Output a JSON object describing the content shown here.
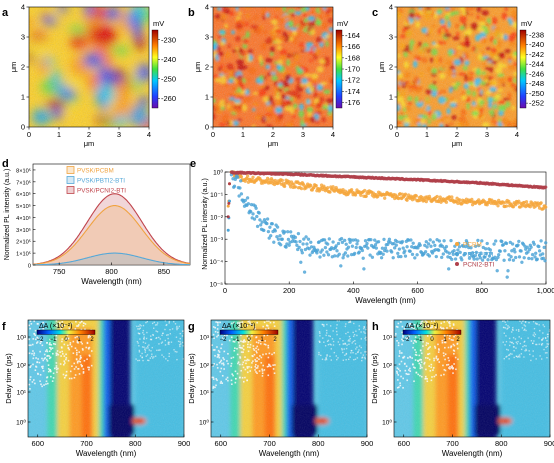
{
  "figure": {
    "panel_letters": [
      "a",
      "b",
      "c",
      "d",
      "e",
      "f",
      "g",
      "h"
    ]
  },
  "chart_data": [
    {
      "panel": "a",
      "type": "heatmap",
      "xlabel": "μm",
      "ylabel": "μm",
      "xlim": [
        0,
        4
      ],
      "ylim": [
        0,
        4
      ],
      "x_ticks": [
        "0",
        "1",
        "2",
        "3",
        "4"
      ],
      "y_ticks": [
        "0",
        "1",
        "2",
        "3",
        "4"
      ],
      "colorbar": {
        "unit": "mV",
        "ticks": [
          "-230",
          "-240",
          "-250",
          "-260"
        ],
        "range": [
          -265,
          -225
        ]
      }
    },
    {
      "panel": "b",
      "type": "heatmap",
      "xlabel": "μm",
      "ylabel": "μm",
      "xlim": [
        0,
        4
      ],
      "ylim": [
        0,
        4
      ],
      "x_ticks": [
        "0",
        "1",
        "2",
        "3",
        "4"
      ],
      "y_ticks": [
        "0",
        "1",
        "2",
        "3",
        "4"
      ],
      "colorbar": {
        "unit": "mV",
        "ticks": [
          "-164",
          "-166",
          "-168",
          "-170",
          "-172",
          "-174",
          "-176"
        ],
        "range": [
          -177,
          -163
        ]
      }
    },
    {
      "panel": "c",
      "type": "heatmap",
      "xlabel": "μm",
      "ylabel": "μm",
      "xlim": [
        0,
        4
      ],
      "ylim": [
        0,
        4
      ],
      "x_ticks": [
        "0",
        "1",
        "2",
        "3",
        "4"
      ],
      "y_ticks": [
        "0",
        "1",
        "2",
        "3",
        "4"
      ],
      "colorbar": {
        "unit": "mV",
        "ticks": [
          "-238",
          "-240",
          "-242",
          "-244",
          "-246",
          "-248",
          "-250",
          "-252"
        ],
        "range": [
          -253,
          -237
        ]
      }
    },
    {
      "panel": "d",
      "type": "area",
      "xlabel": "Wavelength (nm)",
      "ylabel": "Normalized PL intensity (a.u.)",
      "xlim": [
        725,
        875
      ],
      "ylim": [
        0,
        850000.0
      ],
      "x_ticks": [
        "750",
        "800",
        "850"
      ],
      "y_ticks": [
        "0",
        "1×10⁵",
        "2×10⁵",
        "3×10⁵",
        "4×10⁵",
        "5×10⁵",
        "6×10⁵",
        "7×10⁵",
        "8×10⁵"
      ],
      "legend_position": "top-left",
      "series": [
        {
          "name": "PVSK/PCBM",
          "color": "#f0a340",
          "peak": 500000.0,
          "center": 803,
          "width": 26
        },
        {
          "name": "PVSK/PBTI2-BTI",
          "color": "#56a8d8",
          "peak": 100000.0,
          "center": 803,
          "width": 26
        },
        {
          "name": "PVSK/PCNI2-BTI",
          "color": "#c0454c",
          "peak": 600000.0,
          "center": 803,
          "width": 26
        }
      ]
    },
    {
      "panel": "e",
      "type": "scatter",
      "xlabel": "Wavelength (nm)",
      "ylabel": "Normalized PL intensity (a.u.)",
      "xlim": [
        0,
        1000
      ],
      "ylim": [
        1e-05,
        1
      ],
      "yscale": "log",
      "x_ticks": [
        "0",
        "200",
        "400",
        "600",
        "800",
        "1,000"
      ],
      "y_ticks": [
        "10⁻⁵",
        "10⁻⁴",
        "10⁻³",
        "10⁻²",
        "10⁻¹",
        "10⁰"
      ],
      "legend_position": "bottom-right",
      "series": [
        {
          "name": "PCBM",
          "color": "#f5a63c",
          "decay": [
            [
              20,
              0.9
            ],
            [
              60,
              0.5
            ],
            [
              200,
              0.3
            ],
            [
              400,
              0.12
            ],
            [
              600,
              0.07
            ],
            [
              800,
              0.045
            ],
            [
              1000,
              0.03
            ]
          ]
        },
        {
          "name": "PBTI2-BTI",
          "color": "#4aa3d6",
          "decay": [
            [
              20,
              0.9
            ],
            [
              60,
              0.08
            ],
            [
              100,
              0.01
            ],
            [
              150,
              0.002
            ],
            [
              200,
              0.0008
            ],
            [
              300,
              0.0004
            ],
            [
              1000,
              0.0003
            ]
          ]
        },
        {
          "name": "PCNI2-BTI",
          "color": "#b0404a",
          "decay": [
            [
              20,
              0.95
            ],
            [
              200,
              0.8
            ],
            [
              400,
              0.6
            ],
            [
              600,
              0.45
            ],
            [
              800,
              0.32
            ],
            [
              1000,
              0.2
            ]
          ]
        }
      ]
    },
    {
      "panel": "f",
      "type": "heatmap",
      "xlabel": "Wavelength (nm)",
      "ylabel": "Delay time (ps)",
      "xlim": [
        580,
        900
      ],
      "x_ticks": [
        "600",
        "700",
        "800",
        "900"
      ],
      "y_ticks": [
        "10⁰",
        "10¹",
        "10²",
        "10³"
      ],
      "colorbar": {
        "label": "ΔA (×10⁻²)",
        "ticks": [
          "−2",
          "−1",
          "0",
          "1",
          "2"
        ]
      }
    },
    {
      "panel": "g",
      "type": "heatmap",
      "xlabel": "Wavelength (nm)",
      "ylabel": "Delay time (ps)",
      "xlim": [
        580,
        900
      ],
      "x_ticks": [
        "600",
        "700",
        "800",
        "900"
      ],
      "y_ticks": [
        "10⁰",
        "10¹",
        "10²",
        "10³"
      ],
      "colorbar": {
        "label": "ΔA (×10⁻²)",
        "ticks": [
          "−2",
          "−1",
          "0",
          "1",
          "2"
        ]
      }
    },
    {
      "panel": "h",
      "type": "heatmap",
      "xlabel": "Wavelength (nm)",
      "ylabel": "Delay time (ps)",
      "xlim": [
        580,
        900
      ],
      "x_ticks": [
        "600",
        "700",
        "800",
        "900"
      ],
      "y_ticks": [
        "10⁰",
        "10¹",
        "10²",
        "10³"
      ],
      "colorbar": {
        "label": "ΔA (×10⁻²)",
        "ticks": [
          "−2",
          "−1",
          "0",
          "1",
          "2"
        ]
      }
    }
  ]
}
